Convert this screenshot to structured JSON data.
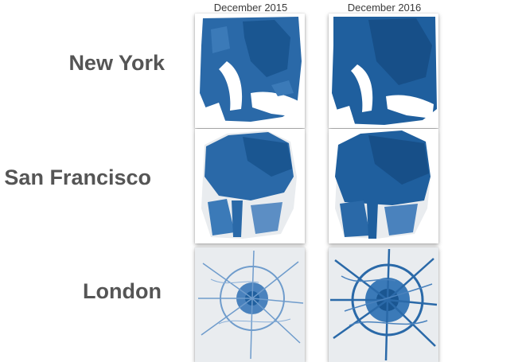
{
  "columns": [
    "December 2015",
    "December 2016"
  ],
  "cities": [
    "New York",
    "San Francisco",
    "London"
  ],
  "colors": {
    "map_fill": "#1f5f9e",
    "map_dense": "#1a5691",
    "map_light": "#6f9ccc",
    "land_gray": "#e9ecef",
    "label_text": "#555555"
  }
}
